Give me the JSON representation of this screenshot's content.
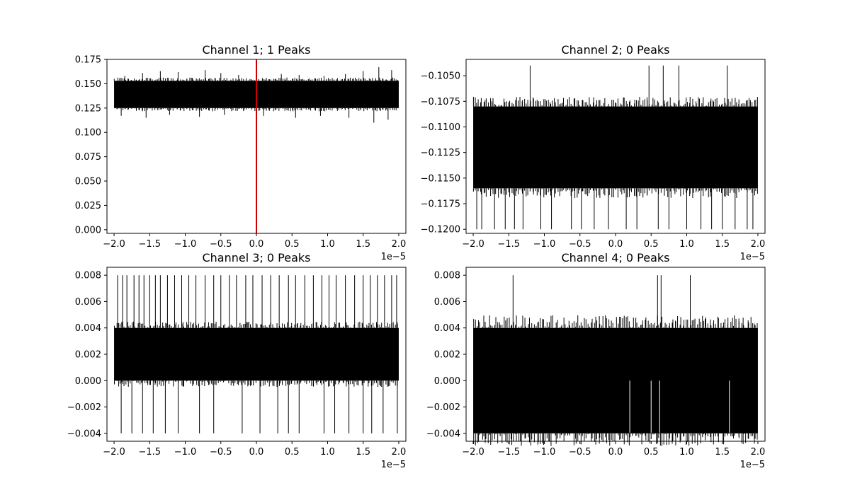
{
  "figure": {
    "background": "#ffffff",
    "foreground": "#000000"
  },
  "chart_data": [
    {
      "type": "line",
      "title": "Channel 1; 1 Peaks",
      "xlabel": "",
      "ylabel": "",
      "x_offset_label": "1e−5",
      "xlim": [
        -2.1,
        2.1
      ],
      "ylim": [
        -0.00375,
        0.175
      ],
      "xticks": [
        -2.0,
        -1.5,
        -1.0,
        -0.5,
        0.0,
        0.5,
        1.0,
        1.5,
        2.0
      ],
      "xtick_labels": [
        "−2.0",
        "−1.5",
        "−1.0",
        "−0.5",
        "0.0",
        "0.5",
        "1.0",
        "1.5",
        "2.0"
      ],
      "yticks": [
        0.0,
        0.025,
        0.05,
        0.075,
        0.1,
        0.125,
        0.15,
        0.175
      ],
      "ytick_labels": [
        "0.000",
        "0.025",
        "0.050",
        "0.075",
        "0.100",
        "0.125",
        "0.150",
        "0.175"
      ],
      "grid": false,
      "series": [
        {
          "color": "#000000",
          "x_range": [
            -2.0,
            2.0
          ],
          "band": [
            0.125,
            0.153
          ],
          "up_spikes": [
            [
              -1.85,
              0.158
            ],
            [
              -1.6,
              0.161
            ],
            [
              -1.35,
              0.163
            ],
            [
              -1.1,
              0.162
            ],
            [
              -0.72,
              0.164
            ],
            [
              -0.5,
              0.161
            ],
            [
              -0.25,
              0.159
            ],
            [
              0.35,
              0.16
            ],
            [
              0.6,
              0.159
            ],
            [
              0.95,
              0.158
            ],
            [
              1.25,
              0.16
            ],
            [
              1.5,
              0.163
            ],
            [
              1.72,
              0.167
            ],
            [
              1.9,
              0.164
            ]
          ],
          "down_spikes": [
            [
              -1.9,
              0.117
            ],
            [
              -1.55,
              0.115
            ],
            [
              -1.22,
              0.118
            ],
            [
              -0.8,
              0.116
            ],
            [
              -0.45,
              0.118
            ],
            [
              0.1,
              0.117
            ],
            [
              0.55,
              0.115
            ],
            [
              0.9,
              0.117
            ],
            [
              1.3,
              0.115
            ],
            [
              1.65,
              0.11
            ],
            [
              1.85,
              0.113
            ]
          ]
        }
      ],
      "markers": [
        {
          "x": 0.0,
          "color": "#cc0000"
        }
      ]
    },
    {
      "type": "line",
      "title": "Channel 2; 0 Peaks",
      "xlabel": "",
      "ylabel": "",
      "x_offset_label": "1e−5",
      "xlim": [
        -2.1,
        2.1
      ],
      "ylim": [
        -0.1204,
        -0.1034
      ],
      "xticks": [
        -2.0,
        -1.5,
        -1.0,
        -0.5,
        0.0,
        0.5,
        1.0,
        1.5,
        2.0
      ],
      "xtick_labels": [
        "−2.0",
        "−1.5",
        "−1.0",
        "−0.5",
        "0.0",
        "0.5",
        "1.0",
        "1.5",
        "2.0"
      ],
      "yticks": [
        -0.12,
        -0.1175,
        -0.115,
        -0.1125,
        -0.11,
        -0.1075,
        -0.105
      ],
      "ytick_labels": [
        "−0.1200",
        "−0.1175",
        "−0.1150",
        "−0.1125",
        "−0.1100",
        "−0.1075",
        "−0.1050"
      ],
      "grid": false,
      "series": [
        {
          "color": "#000000",
          "x_range": [
            -2.0,
            2.0
          ],
          "band": [
            -0.116,
            -0.108
          ],
          "up_spikes": [
            [
              -1.2,
              -0.104
            ],
            [
              0.47,
              -0.104
            ],
            [
              0.67,
              -0.104
            ],
            [
              0.89,
              -0.104
            ],
            [
              1.57,
              -0.104
            ]
          ],
          "down_spikes": [
            [
              -1.95,
              -0.12
            ],
            [
              -1.88,
              -0.12
            ],
            [
              -1.7,
              -0.12
            ],
            [
              -1.55,
              -0.12
            ],
            [
              -1.42,
              -0.12
            ],
            [
              -1.3,
              -0.12
            ],
            [
              -1.05,
              -0.12
            ],
            [
              -0.9,
              -0.12
            ],
            [
              -0.62,
              -0.12
            ],
            [
              -0.48,
              -0.12
            ],
            [
              -0.3,
              -0.12
            ],
            [
              -0.1,
              -0.12
            ],
            [
              0.15,
              -0.12
            ],
            [
              0.3,
              -0.12
            ],
            [
              0.6,
              -0.12
            ],
            [
              0.75,
              -0.12
            ],
            [
              1.0,
              -0.12
            ],
            [
              1.2,
              -0.12
            ],
            [
              1.35,
              -0.12
            ],
            [
              1.5,
              -0.12
            ],
            [
              1.68,
              -0.12
            ],
            [
              1.85,
              -0.12
            ],
            [
              1.93,
              -0.12
            ]
          ]
        }
      ]
    },
    {
      "type": "line",
      "title": "Channel 3; 0 Peaks",
      "xlabel": "",
      "ylabel": "",
      "x_offset_label": "1e−5",
      "xlim": [
        -2.1,
        2.1
      ],
      "ylim": [
        -0.0046,
        0.0086
      ],
      "xticks": [
        -2.0,
        -1.5,
        -1.0,
        -0.5,
        0.0,
        0.5,
        1.0,
        1.5,
        2.0
      ],
      "xtick_labels": [
        "−2.0",
        "−1.5",
        "−1.0",
        "−0.5",
        "0.0",
        "0.5",
        "1.0",
        "1.5",
        "2.0"
      ],
      "yticks": [
        -0.004,
        -0.002,
        0.0,
        0.002,
        0.004,
        0.006,
        0.008
      ],
      "ytick_labels": [
        "−0.004",
        "−0.002",
        "0.000",
        "0.002",
        "0.004",
        "0.006",
        "0.008"
      ],
      "grid": false,
      "series": [
        {
          "color": "#000000",
          "x_range": [
            -2.0,
            2.0
          ],
          "band": [
            0.0,
            0.004
          ],
          "up_spikes": [
            [
              -1.95,
              0.008
            ],
            [
              -1.88,
              0.008
            ],
            [
              -1.82,
              0.008
            ],
            [
              -1.72,
              0.008
            ],
            [
              -1.65,
              0.008
            ],
            [
              -1.58,
              0.008
            ],
            [
              -1.5,
              0.008
            ],
            [
              -1.42,
              0.008
            ],
            [
              -1.35,
              0.008
            ],
            [
              -1.25,
              0.008
            ],
            [
              -1.15,
              0.008
            ],
            [
              -1.05,
              0.008
            ],
            [
              -0.95,
              0.008
            ],
            [
              -0.85,
              0.008
            ],
            [
              -0.72,
              0.008
            ],
            [
              -0.6,
              0.008
            ],
            [
              -0.5,
              0.008
            ],
            [
              -0.38,
              0.008
            ],
            [
              -0.28,
              0.008
            ],
            [
              -0.15,
              0.008
            ],
            [
              -0.05,
              0.008
            ],
            [
              0.08,
              0.008
            ],
            [
              0.2,
              0.008
            ],
            [
              0.32,
              0.008
            ],
            [
              0.45,
              0.008
            ],
            [
              0.55,
              0.008
            ],
            [
              0.68,
              0.008
            ],
            [
              0.8,
              0.008
            ],
            [
              0.92,
              0.008
            ],
            [
              1.02,
              0.008
            ],
            [
              1.12,
              0.008
            ],
            [
              1.25,
              0.008
            ],
            [
              1.38,
              0.008
            ],
            [
              1.5,
              0.008
            ],
            [
              1.6,
              0.008
            ],
            [
              1.7,
              0.008
            ],
            [
              1.8,
              0.008
            ],
            [
              1.9,
              0.008
            ],
            [
              1.97,
              0.008
            ]
          ],
          "down_spikes": [
            [
              -1.9,
              -0.004
            ],
            [
              -1.75,
              -0.004
            ],
            [
              -1.6,
              -0.004
            ],
            [
              -1.45,
              -0.004
            ],
            [
              -1.28,
              -0.004
            ],
            [
              -1.1,
              -0.004
            ],
            [
              -0.8,
              -0.004
            ],
            [
              -0.6,
              -0.004
            ],
            [
              -0.2,
              -0.004
            ],
            [
              0.05,
              -0.004
            ],
            [
              0.3,
              -0.004
            ],
            [
              0.45,
              -0.004
            ],
            [
              0.6,
              -0.004
            ],
            [
              0.95,
              -0.004
            ],
            [
              1.1,
              -0.004
            ],
            [
              1.3,
              -0.004
            ],
            [
              1.5,
              -0.004
            ],
            [
              1.62,
              -0.004
            ],
            [
              1.78,
              -0.004
            ],
            [
              1.98,
              -0.004
            ]
          ]
        }
      ]
    },
    {
      "type": "line",
      "title": "Channel 4; 0 Peaks",
      "xlabel": "",
      "ylabel": "",
      "x_offset_label": "1e−5",
      "xlim": [
        -2.1,
        2.1
      ],
      "ylim": [
        -0.0046,
        0.0086
      ],
      "xticks": [
        -2.0,
        -1.5,
        -1.0,
        -0.5,
        0.0,
        0.5,
        1.0,
        1.5,
        2.0
      ],
      "xtick_labels": [
        "−2.0",
        "−1.5",
        "−1.0",
        "−0.5",
        "0.0",
        "0.5",
        "1.0",
        "1.5",
        "2.0"
      ],
      "yticks": [
        -0.004,
        -0.002,
        0.0,
        0.002,
        0.004,
        0.006,
        0.008
      ],
      "ytick_labels": [
        "−0.004",
        "−0.002",
        "0.000",
        "0.002",
        "0.004",
        "0.006",
        "0.008"
      ],
      "grid": false,
      "series": [
        {
          "color": "#000000",
          "x_range": [
            -2.0,
            2.0
          ],
          "band": [
            -0.004,
            0.004
          ],
          "up_spikes": [
            [
              -1.44,
              0.008
            ],
            [
              0.59,
              0.008
            ],
            [
              0.64,
              0.008
            ],
            [
              1.05,
              0.008
            ]
          ],
          "down_spikes": [],
          "gaps": [
            [
              0.2,
              0.0
            ],
            [
              0.5,
              0.0
            ],
            [
              0.62,
              0.0
            ],
            [
              1.6,
              0.0
            ]
          ]
        }
      ]
    }
  ]
}
